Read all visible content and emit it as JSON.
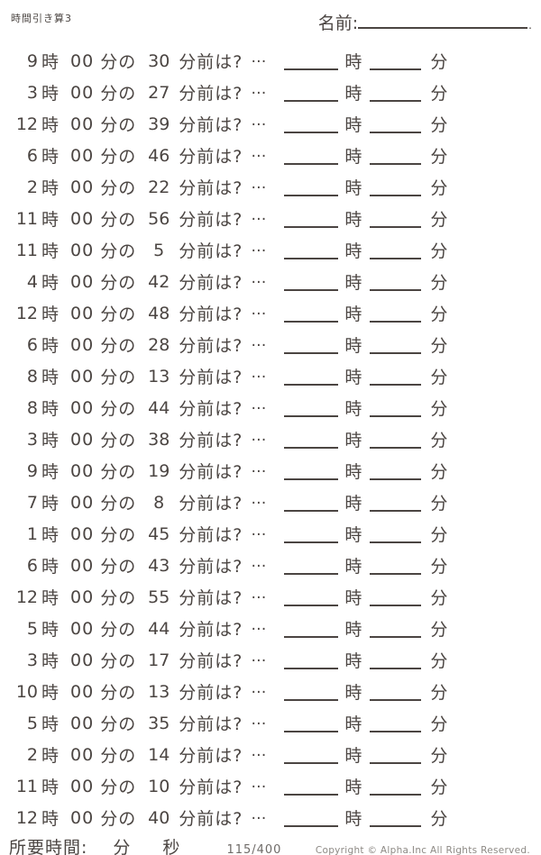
{
  "header": {
    "title": "時間引き算3",
    "name_label": "名前:",
    "name_period": "."
  },
  "labels": {
    "hour_unit": "時",
    "minute_of": "分の",
    "before_question": "分前は?",
    "ellipsis": "…",
    "answer_hour_unit": "時",
    "answer_minute_unit": "分"
  },
  "problems": [
    {
      "hour": "9",
      "minute": "00",
      "subtract": "30"
    },
    {
      "hour": "3",
      "minute": "00",
      "subtract": "27"
    },
    {
      "hour": "12",
      "minute": "00",
      "subtract": "39"
    },
    {
      "hour": "6",
      "minute": "00",
      "subtract": "46"
    },
    {
      "hour": "2",
      "minute": "00",
      "subtract": "22"
    },
    {
      "hour": "11",
      "minute": "00",
      "subtract": "56"
    },
    {
      "hour": "11",
      "minute": "00",
      "subtract": "5"
    },
    {
      "hour": "4",
      "minute": "00",
      "subtract": "42"
    },
    {
      "hour": "12",
      "minute": "00",
      "subtract": "48"
    },
    {
      "hour": "6",
      "minute": "00",
      "subtract": "28"
    },
    {
      "hour": "8",
      "minute": "00",
      "subtract": "13"
    },
    {
      "hour": "8",
      "minute": "00",
      "subtract": "44"
    },
    {
      "hour": "3",
      "minute": "00",
      "subtract": "38"
    },
    {
      "hour": "9",
      "minute": "00",
      "subtract": "19"
    },
    {
      "hour": "7",
      "minute": "00",
      "subtract": "8"
    },
    {
      "hour": "1",
      "minute": "00",
      "subtract": "45"
    },
    {
      "hour": "6",
      "minute": "00",
      "subtract": "43"
    },
    {
      "hour": "12",
      "minute": "00",
      "subtract": "55"
    },
    {
      "hour": "5",
      "minute": "00",
      "subtract": "44"
    },
    {
      "hour": "3",
      "minute": "00",
      "subtract": "17"
    },
    {
      "hour": "10",
      "minute": "00",
      "subtract": "13"
    },
    {
      "hour": "5",
      "minute": "00",
      "subtract": "35"
    },
    {
      "hour": "2",
      "minute": "00",
      "subtract": "14"
    },
    {
      "hour": "11",
      "minute": "00",
      "subtract": "10"
    },
    {
      "hour": "12",
      "minute": "00",
      "subtract": "40"
    }
  ],
  "footer": {
    "time_label": "所要時間:",
    "minute_unit": "分",
    "second_unit": "秒",
    "page": "115/400",
    "copyright": "Copyright ©  Alpha.Inc All Rights Reserved."
  },
  "colors": {
    "text": "#4b4542",
    "muted": "#8d8984"
  }
}
